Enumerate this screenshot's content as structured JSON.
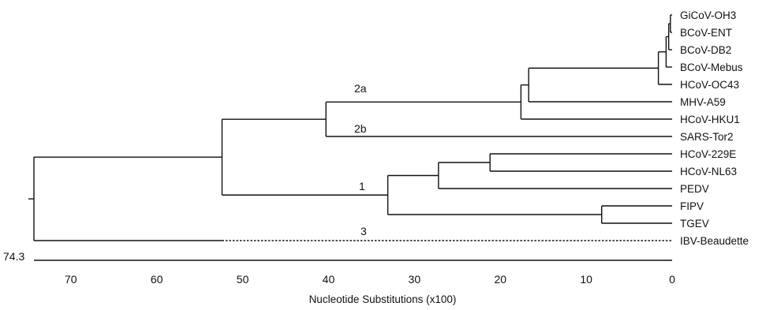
{
  "tree": {
    "clade_labels": {
      "c2a": "2a",
      "c2b": "2b",
      "c1": "1",
      "c3": "3"
    },
    "taxa": [
      "GiCoV-OH3",
      "BCoV-ENT",
      "BCoV-DB2",
      "BCoV-Mebus",
      "HCoV-OC43",
      "MHV-A59",
      "HCoV-HKU1",
      "SARS-Tor2",
      "HCoV-229E",
      "HCoV-NL63",
      "PEDV",
      "FIPV",
      "TGEV",
      "IBV-Beaudette"
    ],
    "nodes": {
      "n_gicov_bcovent": 0.2,
      "n_db2": 0.4,
      "n_mebus": 0.7,
      "n_oc43": 1.6,
      "n_mhv": 16.7,
      "n_hku1": 17.6,
      "n_sars": 40.3,
      "n_alpha_inner": 21.2,
      "n_pedv": 27.2,
      "n_tgev": 8.2,
      "n_alpha": 33.1,
      "n_2_1": 52.4,
      "n_root": 74.3
    },
    "root_depth_label": "74.3",
    "axis": {
      "ticks": [
        "70",
        "60",
        "50",
        "40",
        "30",
        "20",
        "10",
        "0"
      ],
      "tick_values": [
        70,
        60,
        50,
        40,
        30,
        20,
        10,
        0
      ],
      "domain": [
        74.3,
        0
      ],
      "title": "Nucleotide Substitutions (x100)"
    }
  }
}
